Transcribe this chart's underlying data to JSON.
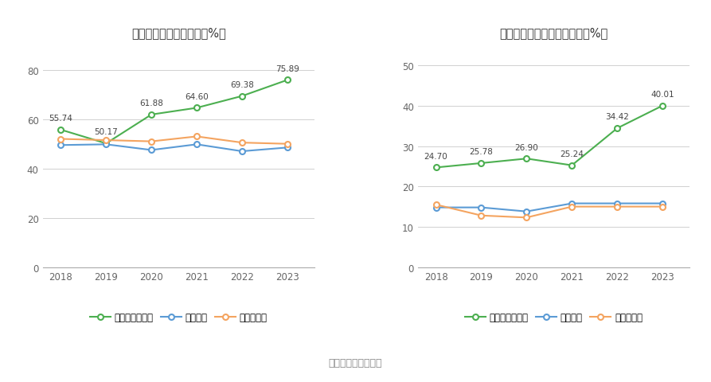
{
  "left_title": "近年来资产负债率情况（%）",
  "right_title": "近年来有息资产负债率情况（%）",
  "years": [
    2018,
    2019,
    2020,
    2021,
    2022,
    2023
  ],
  "left": {
    "company": [
      55.74,
      50.17,
      61.88,
      64.6,
      69.38,
      75.89
    ],
    "industry_mean": [
      49.5,
      49.8,
      47.5,
      49.8,
      47.0,
      48.5
    ],
    "industry_median": [
      52.0,
      51.5,
      51.0,
      53.0,
      50.5,
      50.0
    ],
    "ylim": [
      0,
      90
    ],
    "yticks": [
      0,
      20,
      40,
      60,
      80
    ]
  },
  "right": {
    "company": [
      24.7,
      25.78,
      26.9,
      25.24,
      34.42,
      40.01
    ],
    "industry_mean": [
      14.8,
      14.8,
      13.8,
      15.8,
      15.8,
      15.8
    ],
    "industry_median": [
      15.5,
      12.8,
      12.3,
      15.0,
      15.0,
      15.0
    ],
    "ylim": [
      0,
      55
    ],
    "yticks": [
      0,
      10,
      20,
      30,
      40,
      50
    ]
  },
  "color_company": "#4CAF50",
  "color_mean": "#5B9BD5",
  "color_median": "#F4A460",
  "legend_left": [
    "公司资产负债率",
    "行业均值",
    "行业中位数"
  ],
  "legend_right": [
    "有息资产负债率",
    "行业均值",
    "行业中位数"
  ],
  "source_text": "数据来源：恒生聚源",
  "background_color": "#ffffff",
  "grid_color": "#d0d0d0"
}
